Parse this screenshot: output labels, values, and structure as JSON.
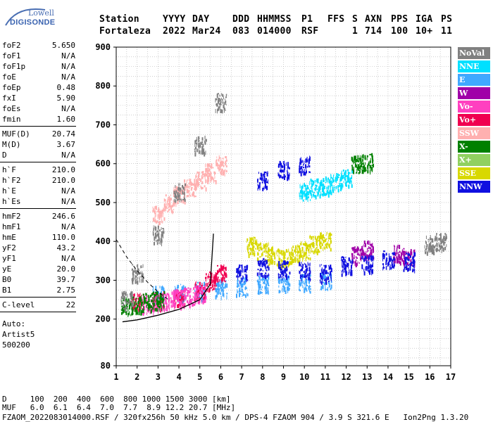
{
  "logo": {
    "line1": "Lowell",
    "line2": "DIGISONDE"
  },
  "header": {
    "labels": [
      "Station",
      "YYYY",
      "DAY",
      "DDD",
      "HHMMSS",
      "P1",
      "FFS",
      "S",
      "AXN",
      "PPS",
      "IGA",
      "PS"
    ],
    "values": [
      "Fortaleza",
      "2022",
      "Mar24",
      "083",
      "014000",
      "RSF",
      "",
      "1",
      "714",
      "100",
      "10+",
      "11"
    ]
  },
  "params_group1": [
    {
      "name": "foF2",
      "value": "5.650"
    },
    {
      "name": "foF1",
      "value": "N/A"
    },
    {
      "name": "foF1p",
      "value": "N/A"
    },
    {
      "name": "foE",
      "value": "N/A"
    },
    {
      "name": "foEp",
      "value": "0.48"
    },
    {
      "name": "fxI",
      "value": "5.90"
    },
    {
      "name": "foEs",
      "value": "N/A"
    },
    {
      "name": "fmin",
      "value": "1.60"
    }
  ],
  "params_group2": [
    {
      "name": "MUF(D)",
      "value": "20.74"
    },
    {
      "name": "M(D)",
      "value": "3.67"
    },
    {
      "name": "D",
      "value": "N/A"
    }
  ],
  "params_group3": [
    {
      "name": "h`F",
      "value": "210.0"
    },
    {
      "name": "h`F2",
      "value": "210.0"
    },
    {
      "name": "h`E",
      "value": "N/A"
    },
    {
      "name": "h`Es",
      "value": "N/A"
    }
  ],
  "params_group4": [
    {
      "name": "hmF2",
      "value": "246.6"
    },
    {
      "name": "hmF1",
      "value": "N/A"
    },
    {
      "name": "hmE",
      "value": "110.0"
    },
    {
      "name": "yF2",
      "value": "43.2"
    },
    {
      "name": "yF1",
      "value": "N/A"
    },
    {
      "name": "yE",
      "value": "20.0"
    },
    {
      "name": "B0",
      "value": "39.7"
    },
    {
      "name": "B1",
      "value": "2.75"
    }
  ],
  "params_group5": [
    {
      "name": "C-level",
      "value": "22"
    }
  ],
  "auto": {
    "line1": "Auto:",
    "line2": "Artist5",
    "line3": "500200"
  },
  "legend": [
    {
      "label": "NoVal",
      "color": "#808080"
    },
    {
      "label": "NNE",
      "color": "#00e0ff"
    },
    {
      "label": "E",
      "color": "#40a8ff"
    },
    {
      "label": "W",
      "color": "#a000a8"
    },
    {
      "label": "Vo-",
      "color": "#ff40c0"
    },
    {
      "label": "Vo+",
      "color": "#f00050"
    },
    {
      "label": "SSW",
      "color": "#ffb0b0"
    },
    {
      "label": "X-",
      "color": "#008000"
    },
    {
      "label": "X+",
      "color": "#90d060"
    },
    {
      "label": "SSE",
      "color": "#d8d800"
    },
    {
      "label": "NNW",
      "color": "#1010e0"
    }
  ],
  "footer": {
    "d_row": "D     100  200  400  600  800 1000 1500 3000 [km]",
    "muf_row": "MUF   6.0  6.1  6.4  7.0  7.7  8.9 12.2 20.7 [MHz]",
    "info_row": "FZAOM_2022083014000.RSF / 320fx256h 50 kHz 5.0 km / DPS-4 FZAOM 904 / 3.9 S 321.6 E   Ion2Png 1.3.20"
  },
  "chart_data": {
    "type": "scatter",
    "title": "",
    "xlabel": "",
    "ylabel": "",
    "xlim": [
      1,
      17
    ],
    "ylim": [
      80,
      900
    ],
    "x_ticks": [
      1,
      2,
      3,
      4,
      5,
      6,
      7,
      8,
      9,
      10,
      11,
      12,
      13,
      14,
      15,
      16,
      17
    ],
    "y_ticks": [
      80,
      200,
      300,
      400,
      500,
      600,
      700,
      800,
      900
    ],
    "grid": true,
    "legend_placement": "right",
    "traces": [
      {
        "name": "h'F trace",
        "x": [
          1.3,
          2.0,
          3.0,
          4.0,
          5.0,
          5.5,
          5.65
        ],
        "y": [
          193,
          198,
          210,
          225,
          250,
          290,
          420
        ]
      },
      {
        "name": "dashed profile",
        "x": [
          1.0,
          1.5,
          2.0,
          2.5,
          3.0,
          3.5
        ],
        "y": [
          405,
          360,
          325,
          295,
          270,
          250
        ]
      }
    ],
    "echo_regions": [
      {
        "color": "NNE",
        "x": [
          10.0,
          10.5,
          11.0,
          11.5,
          12.0
        ],
        "y": [
          530,
          540,
          545,
          555,
          565
        ]
      },
      {
        "color": "E",
        "x": [
          3.0,
          4.0,
          5.0,
          6.0,
          7.0,
          8.0,
          9.0,
          10.0,
          11.0
        ],
        "y": [
          265,
          270,
          275,
          280,
          285,
          290,
          292,
          295,
          300
        ]
      },
      {
        "color": "W",
        "x": [
          12.5,
          13.0,
          14.5,
          15.0
        ],
        "y": [
          365,
          380,
          370,
          360
        ]
      },
      {
        "color": "Vo+",
        "x": [
          2.0,
          3.0,
          4.0,
          5.0,
          5.5,
          6.0
        ],
        "y": [
          245,
          250,
          255,
          275,
          300,
          320
        ]
      },
      {
        "color": "Vo-",
        "x": [
          2.5,
          3.0,
          3.5,
          4.0,
          4.5,
          5.0
        ],
        "y": [
          240,
          245,
          250,
          255,
          260,
          265
        ]
      },
      {
        "color": "X-",
        "x": [
          1.5,
          2.0,
          2.5,
          3.0,
          12.5,
          13.0
        ],
        "y": [
          235,
          240,
          245,
          250,
          600,
          605
        ]
      },
      {
        "color": "SSE",
        "x": [
          7.5,
          8.0,
          8.5,
          9.0,
          9.5,
          10.0,
          10.5,
          11.0
        ],
        "y": [
          390,
          375,
          365,
          360,
          370,
          380,
          395,
          405
        ]
      },
      {
        "color": "SSW",
        "x": [
          3.0,
          3.5,
          4.0,
          4.5,
          5.0,
          5.5,
          6.0
        ],
        "y": [
          470,
          500,
          520,
          540,
          560,
          580,
          600
        ]
      },
      {
        "color": "NNW",
        "x": [
          7.0,
          8.0,
          9.0,
          10.0,
          11.0,
          12.0,
          13.0,
          14.0,
          15.0
        ],
        "y": [
          320,
          335,
          330,
          325,
          320,
          340,
          345,
          355,
          350
        ]
      },
      {
        "color": "NNW",
        "x": [
          8.0,
          9.0,
          10.0
        ],
        "y": [
          560,
          585,
          600
        ]
      },
      {
        "color": "NoVal",
        "x": [
          1.5,
          2.0,
          3.0,
          4.0,
          5.0,
          6.0,
          16.0,
          16.5
        ],
        "y": [
          250,
          320,
          420,
          530,
          650,
          760,
          395,
          400
        ]
      }
    ]
  }
}
